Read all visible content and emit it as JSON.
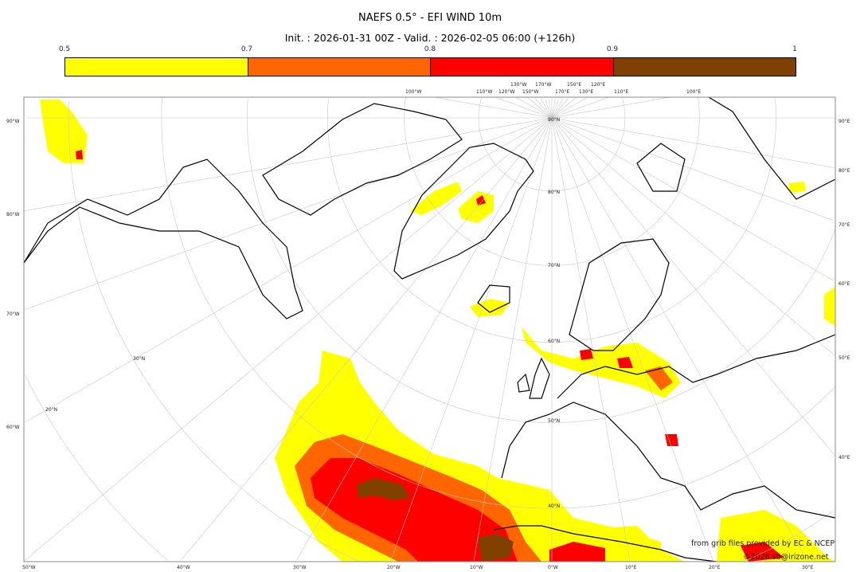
{
  "title": "NAEFS 0.5° - EFI WIND 10m",
  "subtitle": "Init. : 2026-01-31 00Z - Valid. : 2026-02-05 06:00 (+126h)",
  "colorbar": {
    "ticks": [
      "0.5",
      "0.7",
      "0.8",
      "0.9",
      "1"
    ],
    "colors": [
      "#ffff00",
      "#ff6600",
      "#ff0000",
      "#804000"
    ]
  },
  "map": {
    "projection": "north polar stereographic",
    "left_labels": [
      "90°W",
      "80°W",
      "70°W",
      "60°W"
    ],
    "right_labels": [
      "90°E",
      "80°E",
      "70°E",
      "60°E",
      "50°E",
      "40°E"
    ],
    "bottom_labels": [
      "50°W",
      "40°W",
      "30°W",
      "20°W",
      "10°W",
      "0°W",
      "10°E",
      "20°E",
      "30°E"
    ],
    "top_labels": [
      "100°W",
      "110°W",
      "120°W",
      "130°W",
      "150°W",
      "170°W",
      "170°E",
      "150°E",
      "130°E",
      "120°E",
      "110°E",
      "100°E"
    ],
    "lat_labels": [
      "90°N",
      "80°N",
      "70°N",
      "60°N",
      "50°N",
      "40°N",
      "30°N",
      "20°N"
    ]
  },
  "credits": {
    "line1": "from grib files provided by EC & NCEP",
    "line2": "©2026 sb@irizone.net"
  }
}
